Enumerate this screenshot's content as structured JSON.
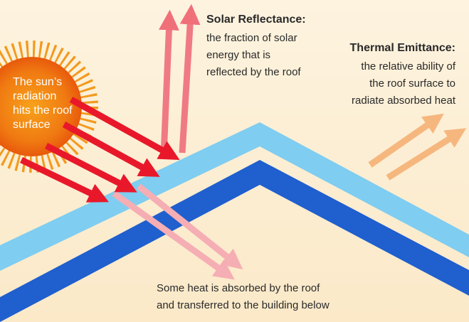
{
  "sun_label": {
    "lines": [
      "The sun’s",
      "radiation",
      "hits the roof",
      "surface"
    ]
  },
  "solar_reflectance": {
    "title": "Solar Reflectance:",
    "lines": [
      "the fraction of solar",
      "energy that is",
      "reflected by the roof"
    ]
  },
  "thermal_emittance": {
    "title": "Thermal Emittance:",
    "lines": [
      "the relative ability of",
      "the roof surface to",
      "radiate absorbed heat"
    ]
  },
  "absorbed": {
    "lines": [
      "Some heat is absorbed by the roof",
      "and transferred to the building below"
    ]
  }
}
